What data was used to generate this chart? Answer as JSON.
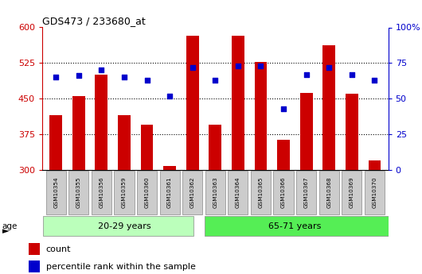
{
  "title": "GDS473 / 233680_at",
  "samples": [
    "GSM10354",
    "GSM10355",
    "GSM10356",
    "GSM10359",
    "GSM10360",
    "GSM10361",
    "GSM10362",
    "GSM10363",
    "GSM10364",
    "GSM10365",
    "GSM10366",
    "GSM10367",
    "GSM10368",
    "GSM10369",
    "GSM10370"
  ],
  "counts": [
    415,
    455,
    500,
    415,
    395,
    308,
    583,
    395,
    583,
    527,
    363,
    462,
    562,
    460,
    320
  ],
  "percentile_ranks": [
    65,
    66,
    70,
    65,
    63,
    52,
    72,
    63,
    73,
    73,
    43,
    67,
    72,
    67,
    63
  ],
  "group1_label": "20-29 years",
  "group2_label": "65-71 years",
  "group1_count": 7,
  "group2_count": 8,
  "ymin": 300,
  "ymax": 600,
  "yticks": [
    300,
    375,
    450,
    525,
    600
  ],
  "pct_ticks": [
    0,
    25,
    50,
    75,
    100
  ],
  "bar_color": "#cc0000",
  "dot_color": "#0000cc",
  "group1_bg": "#bbffbb",
  "group2_bg": "#55ee55",
  "tick_bg": "#cccccc",
  "legend_count_label": "count",
  "legend_pct_label": "percentile rank within the sample"
}
